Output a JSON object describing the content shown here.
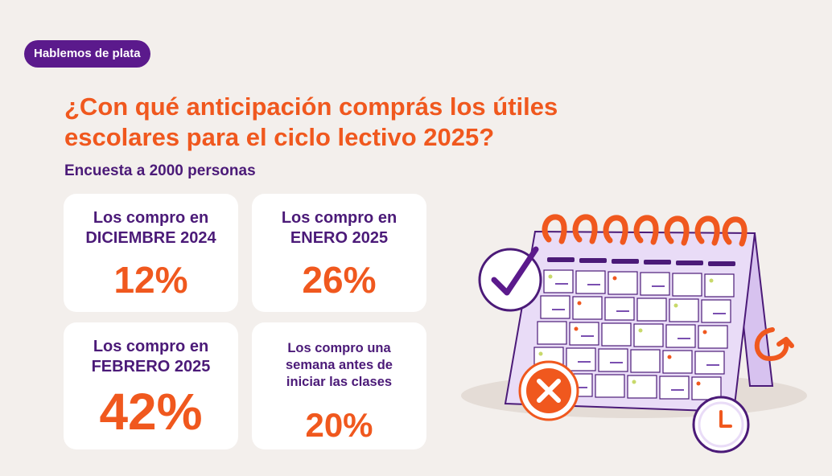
{
  "badge": "Hablemos de plata",
  "title": {
    "line1": "¿Con qué anticipación comprás los útiles",
    "line2": "escolares para el ciclo lectivo 2025?"
  },
  "subtitle": "Encuesta a 2000 personas",
  "cards": [
    {
      "label_lines": [
        "Los compro en",
        "DICIEMBRE 2024"
      ],
      "value": "12%"
    },
    {
      "label_lines": [
        "Los compro en",
        "ENERO 2025"
      ],
      "value": "26%"
    },
    {
      "label_lines": [
        "Los compro en",
        "FEBRERO 2025"
      ],
      "value": "42%"
    },
    {
      "label_lines": [
        "Los compro una",
        "semana antes de",
        "iniciar las clases"
      ],
      "value": "20%"
    }
  ],
  "colors": {
    "background": "#f3efec",
    "brand_purple": "#5b1a8c",
    "text_purple": "#4b1a78",
    "accent_orange": "#f0581e",
    "calendar_lavender": "#e9dcf7"
  },
  "illustration": {
    "icons": [
      "calendar-icon",
      "check-icon",
      "cross-icon",
      "clock-icon",
      "refresh-arrow-icon"
    ]
  }
}
